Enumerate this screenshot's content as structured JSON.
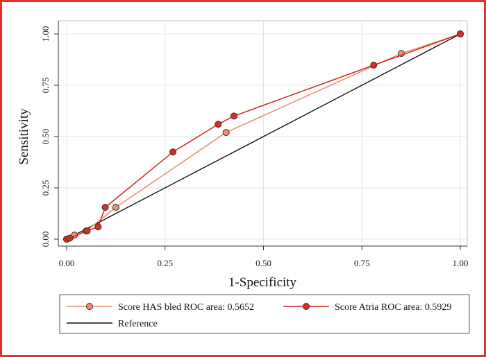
{
  "chart_data": {
    "type": "line",
    "xlabel": "1-Specificity",
    "ylabel": "Sensitivity",
    "xlim": [
      0,
      1
    ],
    "ylim": [
      0,
      1
    ],
    "x_ticks": [
      "0.00",
      "0.25",
      "0.50",
      "0.75",
      "1.00"
    ],
    "y_ticks": [
      "0.00",
      "0.25",
      "0.50",
      "0.75",
      "1.00"
    ],
    "grid": true,
    "legend_position": "bottom",
    "series": [
      {
        "name": "Score HAS bled ROC area: 0.5652",
        "color": "#f08a6a",
        "marker_fill": "#f28d6d",
        "x": [
          0.0,
          0.02,
          0.05,
          0.125,
          0.405,
          0.85,
          1.0
        ],
        "y": [
          0.0,
          0.02,
          0.04,
          0.155,
          0.52,
          0.905,
          1.0
        ]
      },
      {
        "name": "Score Atria ROC area: 0.5929",
        "color": "#d42020",
        "marker_fill": "#dd2a22",
        "x": [
          0.0,
          0.008,
          0.052,
          0.08,
          0.098,
          0.27,
          0.385,
          0.425,
          0.78,
          1.0
        ],
        "y": [
          0.0,
          0.005,
          0.04,
          0.06,
          0.155,
          0.425,
          0.56,
          0.6,
          0.848,
          1.0
        ]
      },
      {
        "name": "Reference",
        "color": "#111111",
        "marker_fill": null,
        "x": [
          0,
          1
        ],
        "y": [
          0,
          1
        ]
      }
    ]
  }
}
